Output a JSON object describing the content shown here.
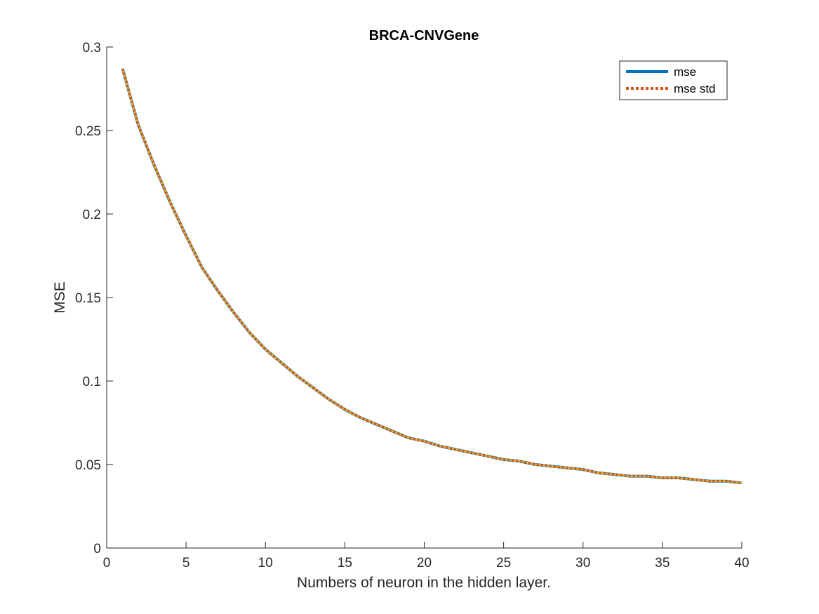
{
  "chart_data": {
    "type": "line",
    "title": "BRCA-CNVGene",
    "xlabel": "Numbers of neuron in the hidden layer.",
    "ylabel": "MSE",
    "xlim": [
      0,
      40
    ],
    "ylim": [
      0,
      0.3
    ],
    "xticks": [
      "0",
      "5",
      "10",
      "15",
      "20",
      "25",
      "30",
      "35",
      "40"
    ],
    "yticks": [
      "0",
      "0.05",
      "0.1",
      "0.15",
      "0.2",
      "0.25",
      "0.3"
    ],
    "grid": false,
    "legend_position": "top-right",
    "x": [
      1,
      2,
      3,
      4,
      5,
      6,
      7,
      8,
      9,
      10,
      11,
      12,
      13,
      14,
      15,
      16,
      17,
      18,
      19,
      20,
      21,
      22,
      23,
      24,
      25,
      26,
      27,
      28,
      29,
      30,
      31,
      32,
      33,
      34,
      35,
      36,
      37,
      38,
      39,
      40
    ],
    "series": [
      {
        "name": "mse",
        "color": "#0072bd",
        "style": "solid",
        "values": [
          0.287,
          0.253,
          0.229,
          0.207,
          0.187,
          0.168,
          0.154,
          0.141,
          0.129,
          0.119,
          0.111,
          0.103,
          0.096,
          0.089,
          0.083,
          0.078,
          0.074,
          0.07,
          0.066,
          0.064,
          0.061,
          0.059,
          0.057,
          0.055,
          0.053,
          0.052,
          0.05,
          0.049,
          0.048,
          0.047,
          0.045,
          0.044,
          0.043,
          0.043,
          0.042,
          0.042,
          0.041,
          0.04,
          0.04,
          0.039
        ]
      },
      {
        "name": "mse std",
        "color": "#d95319",
        "style": "dotted",
        "values": [
          0.287,
          0.253,
          0.229,
          0.207,
          0.187,
          0.168,
          0.154,
          0.141,
          0.129,
          0.119,
          0.111,
          0.103,
          0.096,
          0.089,
          0.083,
          0.078,
          0.074,
          0.07,
          0.066,
          0.064,
          0.061,
          0.059,
          0.057,
          0.055,
          0.053,
          0.052,
          0.05,
          0.049,
          0.048,
          0.047,
          0.045,
          0.044,
          0.043,
          0.043,
          0.042,
          0.042,
          0.041,
          0.04,
          0.04,
          0.039
        ]
      }
    ],
    "overlay_color": "#edb120"
  }
}
